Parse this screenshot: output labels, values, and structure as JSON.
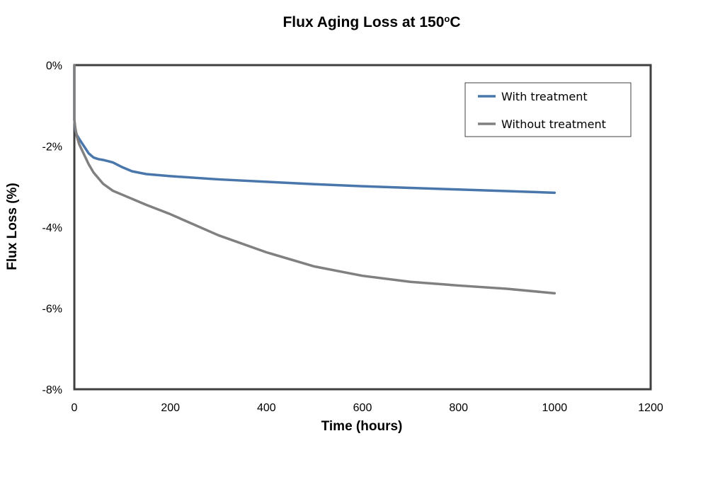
{
  "chart_data": {
    "type": "line",
    "title": {
      "main": "Flux Aging Loss at 150",
      "superscript": "o",
      "suffix": "C"
    },
    "xlabel": "Time (hours)",
    "ylabel": "Flux Loss (%)",
    "xlim": [
      0,
      1200
    ],
    "ylim": [
      -8,
      0
    ],
    "xticks": [
      0,
      200,
      400,
      600,
      800,
      1000,
      1200
    ],
    "xtick_labels": [
      "0",
      "200",
      "400",
      "600",
      "800",
      "1000",
      "1200"
    ],
    "yticks": [
      0,
      -2,
      -4,
      -6,
      -8
    ],
    "ytick_labels": [
      "0%",
      "-2%",
      "-4%",
      "-6%",
      "-8%"
    ],
    "grid": false,
    "legend_position": "top-right",
    "series": [
      {
        "name": "With treatment",
        "color": "#4a77ab",
        "x": [
          0,
          2,
          5,
          10,
          20,
          30,
          40,
          50,
          60,
          80,
          100,
          120,
          150,
          200,
          300,
          400,
          500,
          600,
          700,
          800,
          900,
          1000
        ],
        "y": [
          -1.35,
          -1.6,
          -1.72,
          -1.82,
          -2.0,
          -2.18,
          -2.28,
          -2.32,
          -2.34,
          -2.4,
          -2.52,
          -2.62,
          -2.69,
          -2.74,
          -2.82,
          -2.88,
          -2.94,
          -2.99,
          -3.03,
          -3.07,
          -3.11,
          -3.15
        ]
      },
      {
        "name": "Without treatment",
        "color": "#808080",
        "x": [
          0,
          2,
          5,
          10,
          20,
          30,
          40,
          60,
          80,
          100,
          150,
          200,
          300,
          400,
          500,
          600,
          700,
          800,
          900,
          1000
        ],
        "y": [
          -1.35,
          -1.55,
          -1.75,
          -1.95,
          -2.2,
          -2.45,
          -2.65,
          -2.93,
          -3.1,
          -3.2,
          -3.45,
          -3.68,
          -4.2,
          -4.62,
          -4.97,
          -5.2,
          -5.35,
          -5.44,
          -5.52,
          -5.63
        ]
      }
    ]
  }
}
